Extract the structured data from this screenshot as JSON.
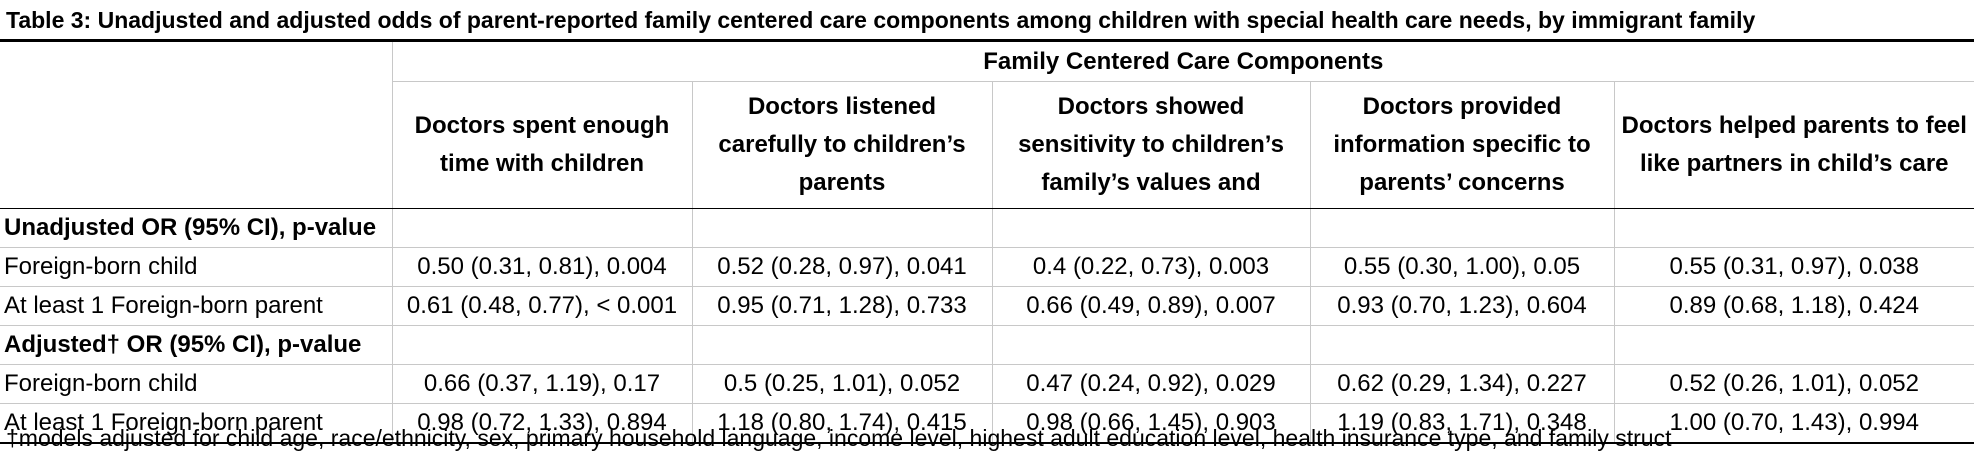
{
  "title": "Table 3: Unadjusted and adjusted odds of parent-reported family centered care components among children with special health care needs, by immigrant family",
  "column_group": "Family Centered Care Components",
  "columns": [
    "Doctors spent enough time with children",
    "Doctors listened carefully to children’s parents",
    "Doctors showed sensitivity to children’s family’s values and",
    "Doctors provided information specific to parents’ concerns",
    "Doctors helped parents to feel like partners in child’s care"
  ],
  "sections": [
    {
      "label": "Unadjusted OR (95% CI), p-value",
      "rows": [
        {
          "label": "Foreign-born child",
          "values": [
            "0.50 (0.31, 0.81), 0.004",
            "0.52 (0.28, 0.97), 0.041",
            "0.4 (0.22, 0.73), 0.003",
            "0.55 (0.30, 1.00), 0.05",
            "0.55 (0.31, 0.97), 0.038"
          ]
        },
        {
          "label": "At least 1 Foreign-born parent",
          "values": [
            "0.61 (0.48, 0.77), < 0.001",
            "0.95 (0.71, 1.28), 0.733",
            "0.66 (0.49, 0.89), 0.007",
            "0.93 (0.70, 1.23), 0.604",
            "0.89 (0.68, 1.18), 0.424"
          ]
        }
      ]
    },
    {
      "label": "Adjusted† OR (95% CI), p-value",
      "rows": [
        {
          "label": "Foreign-born child",
          "values": [
            "0.66 (0.37, 1.19), 0.17",
            "0.5 (0.25, 1.01), 0.052",
            "0.47 (0.24, 0.92), 0.029",
            "0.62 (0.29, 1.34), 0.227",
            "0.52 (0.26, 1.01), 0.052"
          ]
        },
        {
          "label": "At least 1 Foreign-born parent",
          "values": [
            "0.98 (0.72, 1.33), 0.894",
            "1.18 (0.80, 1.74), 0.415",
            "0.98 (0.66, 1.45), 0.903",
            "1.19 (0.83, 1.71), 0.348",
            "1.00 (0.70, 1.43), 0.994"
          ]
        }
      ]
    }
  ],
  "footnote": "†models adjusted for child age, race/ethnicity, sex, primary household language, income level, highest adult education level,  health insurance type, and family struct"
}
